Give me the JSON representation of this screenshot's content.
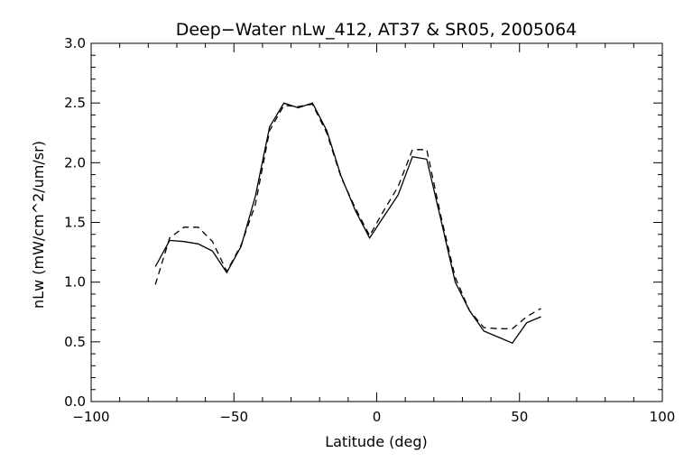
{
  "chart_data": {
    "type": "line",
    "title": "Deep−Water nLw_412, AT37 & SR05, 2005064",
    "xlabel": "Latitude (deg)",
    "ylabel": "nLw (mW/cm^2/um/sr)",
    "xlim": [
      -100,
      100
    ],
    "ylim": [
      0.0,
      3.0
    ],
    "x_ticks": [
      -100,
      -50,
      0,
      50,
      100
    ],
    "x_tick_labels": [
      "−100",
      "−50",
      "0",
      "50",
      "100"
    ],
    "y_ticks": [
      0.0,
      0.5,
      1.0,
      1.5,
      2.0,
      2.5,
      3.0
    ],
    "y_tick_labels": [
      "0.0",
      "0.5",
      "1.0",
      "1.5",
      "2.0",
      "2.5",
      "3.0"
    ],
    "grid": false,
    "legend": "none",
    "series": [
      {
        "style": "solid",
        "color": "#000000",
        "x": [
          -77.5,
          -72.5,
          -67.5,
          -62.5,
          -57.5,
          -52.5,
          -47.5,
          -42.5,
          -37.5,
          -32.5,
          -27.5,
          -22.5,
          -17.5,
          -12.5,
          -7.5,
          -2.5,
          2.5,
          7.5,
          12.5,
          17.5,
          22.5,
          27.5,
          32.5,
          37.5,
          42.5,
          47.5,
          52.5,
          57.5
        ],
        "y": [
          1.13,
          1.35,
          1.34,
          1.32,
          1.26,
          1.08,
          1.3,
          1.72,
          2.3,
          2.5,
          2.46,
          2.5,
          2.27,
          1.89,
          1.6,
          1.37,
          1.55,
          1.73,
          2.05,
          2.03,
          1.52,
          1.0,
          0.76,
          0.59,
          0.54,
          0.49,
          0.66,
          0.71
        ]
      },
      {
        "style": "dashed",
        "color": "#000000",
        "x": [
          -77.5,
          -72.5,
          -67.5,
          -62.5,
          -57.5,
          -52.5,
          -47.5,
          -42.5,
          -37.5,
          -32.5,
          -27.5,
          -22.5,
          -17.5,
          -12.5,
          -7.5,
          -2.5,
          2.5,
          7.5,
          12.5,
          17.5,
          22.5,
          27.5,
          32.5,
          37.5,
          42.5,
          47.5,
          52.5,
          57.5
        ],
        "y": [
          0.98,
          1.37,
          1.46,
          1.46,
          1.34,
          1.09,
          1.31,
          1.65,
          2.27,
          2.48,
          2.47,
          2.49,
          2.25,
          1.88,
          1.62,
          1.39,
          1.6,
          1.8,
          2.11,
          2.11,
          1.55,
          1.04,
          0.76,
          0.62,
          0.61,
          0.61,
          0.71,
          0.78
        ]
      }
    ]
  }
}
